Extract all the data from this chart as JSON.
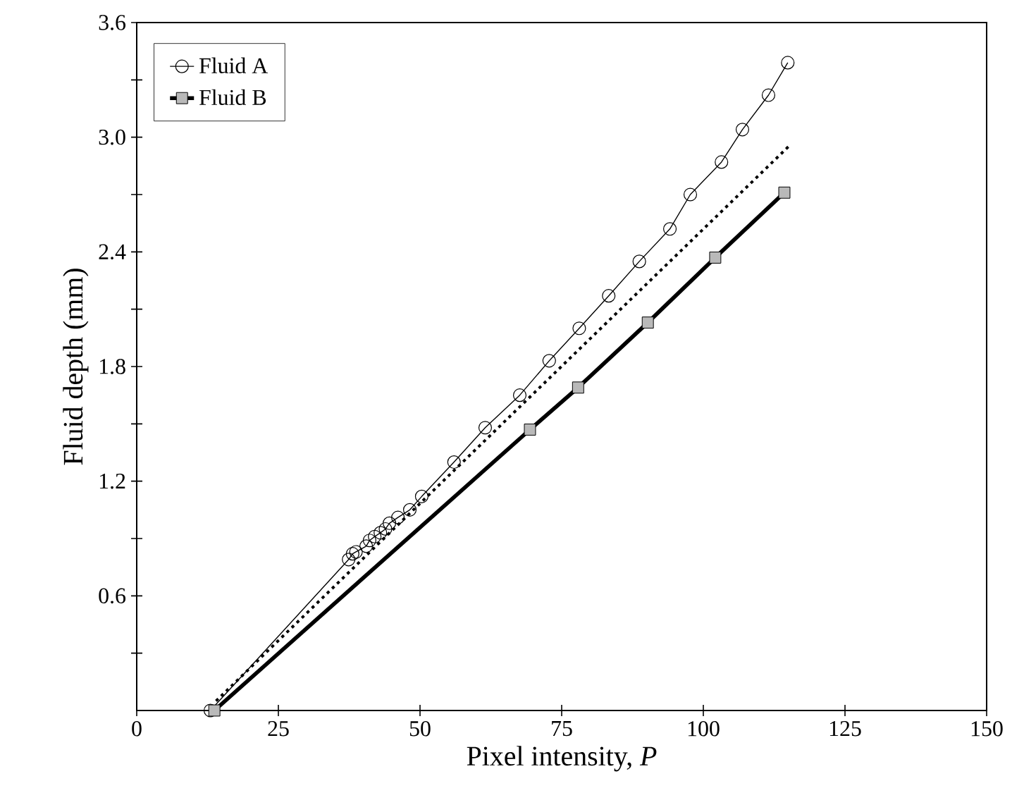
{
  "chart_data": {
    "type": "line",
    "xlabel": "Pixel intensity, *P*",
    "ylabel": "Fluid depth (mm)",
    "xlim": [
      0,
      150
    ],
    "ylim": [
      0,
      3.6
    ],
    "xticks": [
      0,
      25,
      50,
      75,
      100,
      125,
      150
    ],
    "yticks": [
      {
        "value": 0.3,
        "label": null
      },
      0.6,
      {
        "value": 0.9,
        "label": null
      },
      1.2,
      {
        "value": 1.5,
        "label": null
      },
      1.8,
      {
        "value": 2.1,
        "label": null
      },
      2.4,
      {
        "value": 2.7,
        "label": null
      },
      {
        "value": 3.0,
        "label": "3.0"
      },
      {
        "value": 3.3,
        "label": null
      },
      3.6
    ],
    "grid": false,
    "legend": "top left",
    "series": [
      {
        "name": "Fluid A",
        "color": "#000000",
        "marker": "circle",
        "line_style": "solid",
        "x": [
          13.0,
          37.4,
          38.1,
          38.7,
          40.5,
          41.1,
          42.0,
          43.0,
          43.9,
          44.6,
          46.1,
          48.2,
          50.3,
          56.0,
          61.5,
          67.6,
          72.8,
          78.1,
          83.3,
          88.7,
          94.1,
          97.7,
          103.2,
          106.9,
          111.5,
          114.9
        ],
        "values": [
          0,
          0.79,
          0.82,
          0.83,
          0.86,
          0.89,
          0.91,
          0.93,
          0.95,
          0.98,
          1.01,
          1.05,
          1.12,
          1.3,
          1.48,
          1.65,
          1.83,
          2.0,
          2.17,
          2.35,
          2.52,
          2.7,
          2.87,
          3.04,
          3.22,
          3.39
        ]
      },
      {
        "name": "Fluid B",
        "color": "#000000",
        "marker": "square",
        "line_style": "solid",
        "x": [
          13.7,
          69.4,
          77.9,
          90.2,
          102.1,
          114.3
        ],
        "values": [
          0,
          1.47,
          1.69,
          2.03,
          2.37,
          2.71
        ]
      },
      {
        "color": "#000000",
        "marker": "none",
        "line_style": "dotted",
        "x": [
          14.0,
          115.0
        ],
        "values": [
          0.05,
          2.95
        ]
      }
    ]
  }
}
